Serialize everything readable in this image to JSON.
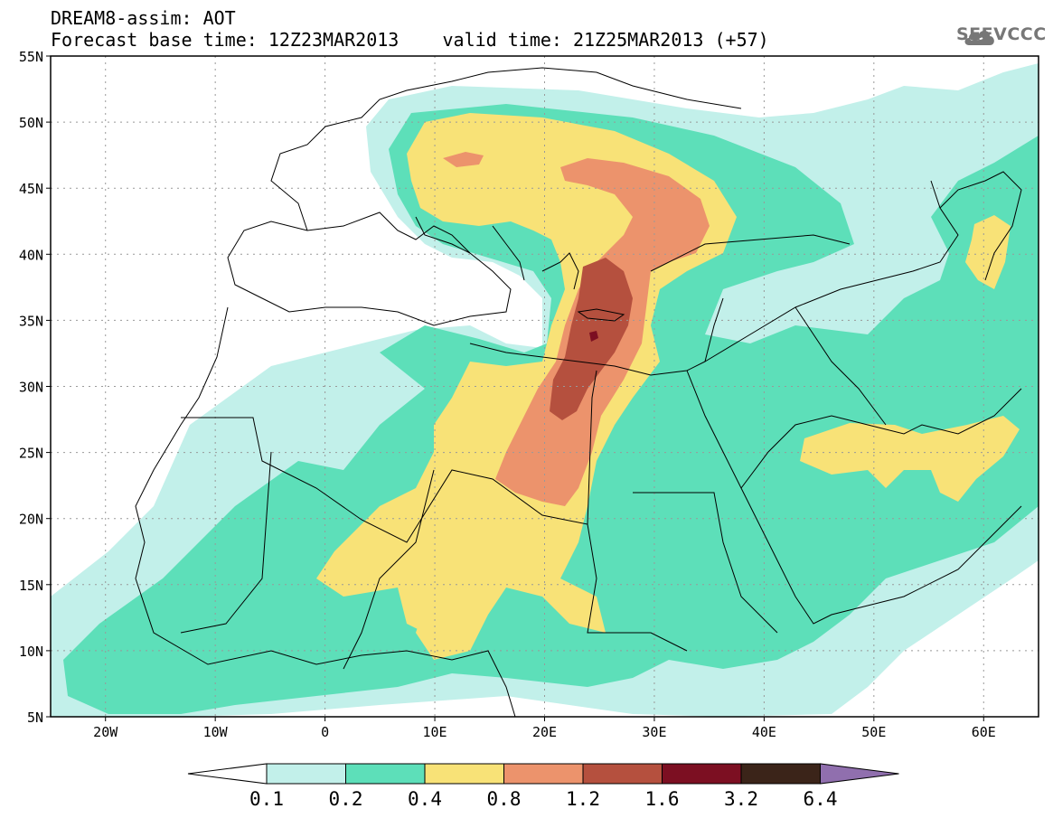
{
  "header": {
    "title": "DREAM8-assim: AOT",
    "base_time_label": "Forecast base time: 12Z23MAR2013",
    "valid_time_label": "valid time: 21Z25MAR2013 (+57)"
  },
  "logo": {
    "text": "SEEVCCC",
    "icon": "cloud-icon"
  },
  "map": {
    "lat_labels": [
      "55N",
      "50N",
      "45N",
      "40N",
      "35N",
      "30N",
      "25N",
      "20N",
      "15N",
      "10N",
      "5N"
    ],
    "lon_labels": [
      "20W",
      "10W",
      "0",
      "10E",
      "20E",
      "30E",
      "40E",
      "50E",
      "60E"
    ],
    "lat_range": [
      5,
      55
    ],
    "lon_range": [
      -25,
      65
    ],
    "grid": true
  },
  "colorbar": {
    "levels": [
      "0.1",
      "0.2",
      "0.4",
      "0.8",
      "1.2",
      "1.6",
      "3.2",
      "6.4"
    ],
    "colors": [
      "#ffffff",
      "#c2f0ea",
      "#5ddfb9",
      "#f8e277",
      "#ec936c",
      "#b5503e",
      "#7c0f22",
      "#3b2419",
      "#906fae"
    ]
  },
  "colors": {
    "c01": "#c2f0ea",
    "c02": "#5ddfb9",
    "c04": "#f8e277",
    "c08": "#ec936c",
    "c12": "#b5503e",
    "c16": "#7c0f22"
  }
}
